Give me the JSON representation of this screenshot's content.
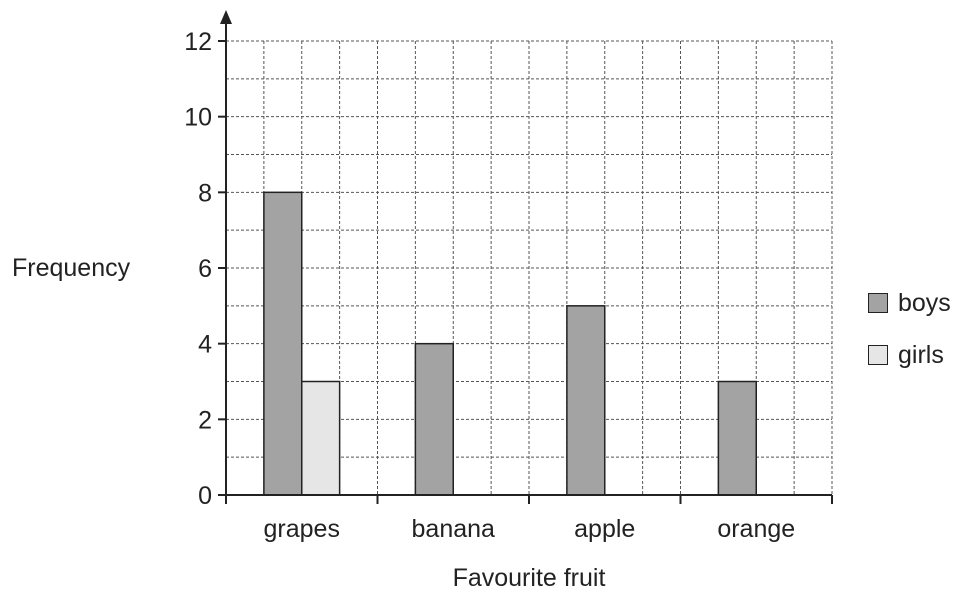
{
  "chart_data": {
    "type": "bar",
    "categories": [
      "grapes",
      "banana",
      "apple",
      "orange"
    ],
    "series": [
      {
        "name": "boys",
        "values": [
          8,
          4,
          5,
          3
        ],
        "color": "#a3a3a3"
      },
      {
        "name": "girls",
        "values": [
          3,
          0,
          0,
          0
        ],
        "color": "#e6e6e6"
      }
    ],
    "xlabel": "Favourite fruit",
    "ylabel": "Frequency",
    "ylim": [
      0,
      12
    ],
    "yticks": [
      0,
      2,
      4,
      6,
      8,
      10,
      12
    ],
    "grid": true,
    "legend_position": "right"
  }
}
